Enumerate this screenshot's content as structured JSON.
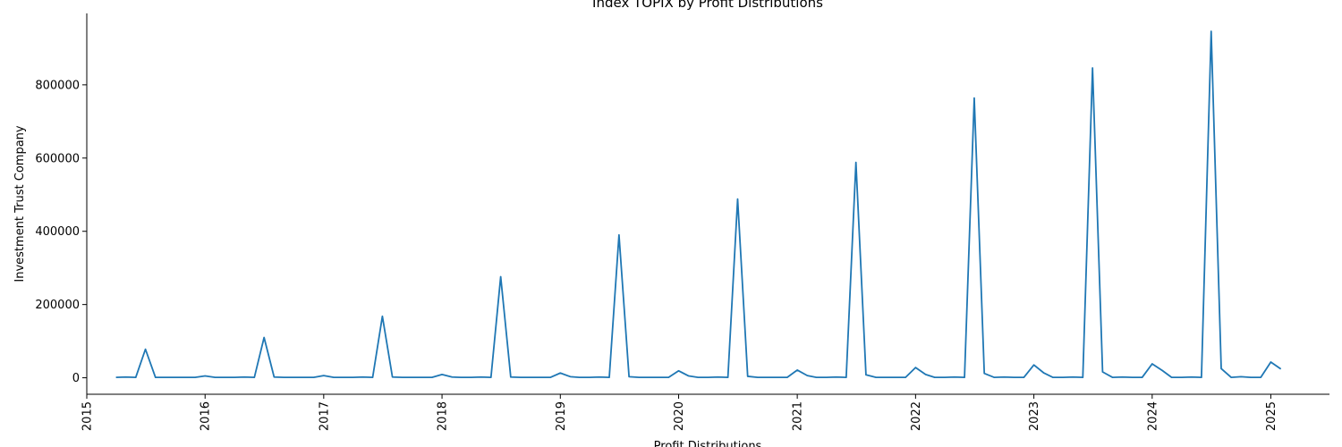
{
  "chart_data": {
    "type": "line",
    "title": "Index TOPIX by Profit Distributions",
    "xlabel": "Profit Distributions",
    "ylabel": "Investment Trust Company",
    "xlim": [
      "2015-01-01",
      "2025-07-01"
    ],
    "ylim": [
      -45000,
      995000
    ],
    "x_ticks": [
      "2015",
      "2016",
      "2017",
      "2018",
      "2019",
      "2020",
      "2021",
      "2022",
      "2023",
      "2024",
      "2025"
    ],
    "y_ticks": [
      0,
      200000,
      400000,
      600000,
      800000
    ],
    "y_tick_labels": [
      "0",
      "200000",
      "400000",
      "600000",
      "800000"
    ],
    "grid": false,
    "series": [
      {
        "color": "#1f77b4",
        "points": [
          [
            "2015-04-01",
            1000
          ],
          [
            "2015-05-01",
            2000
          ],
          [
            "2015-06-01",
            1000
          ],
          [
            "2015-07-01",
            78000
          ],
          [
            "2015-08-01",
            1000
          ],
          [
            "2015-09-01",
            1000
          ],
          [
            "2015-10-01",
            1000
          ],
          [
            "2015-11-01",
            1000
          ],
          [
            "2015-12-01",
            1000
          ],
          [
            "2016-01-01",
            5000
          ],
          [
            "2016-02-01",
            1000
          ],
          [
            "2016-03-01",
            1000
          ],
          [
            "2016-04-01",
            1000
          ],
          [
            "2016-05-01",
            2000
          ],
          [
            "2016-06-01",
            1000
          ],
          [
            "2016-07-01",
            110000
          ],
          [
            "2016-08-01",
            2000
          ],
          [
            "2016-09-01",
            1000
          ],
          [
            "2016-10-01",
            1000
          ],
          [
            "2016-11-01",
            1000
          ],
          [
            "2016-12-01",
            1000
          ],
          [
            "2017-01-01",
            6000
          ],
          [
            "2017-02-01",
            1000
          ],
          [
            "2017-03-01",
            1000
          ],
          [
            "2017-04-01",
            1000
          ],
          [
            "2017-05-01",
            2000
          ],
          [
            "2017-06-01",
            1000
          ],
          [
            "2017-07-01",
            168000
          ],
          [
            "2017-08-01",
            2000
          ],
          [
            "2017-09-01",
            1000
          ],
          [
            "2017-10-01",
            1000
          ],
          [
            "2017-11-01",
            1000
          ],
          [
            "2017-12-01",
            1000
          ],
          [
            "2018-01-01",
            9000
          ],
          [
            "2018-02-01",
            2000
          ],
          [
            "2018-03-01",
            1000
          ],
          [
            "2018-04-01",
            1000
          ],
          [
            "2018-05-01",
            2000
          ],
          [
            "2018-06-01",
            1000
          ],
          [
            "2018-07-01",
            276000
          ],
          [
            "2018-08-01",
            2000
          ],
          [
            "2018-09-01",
            1000
          ],
          [
            "2018-10-01",
            1000
          ],
          [
            "2018-11-01",
            1000
          ],
          [
            "2018-12-01",
            1000
          ],
          [
            "2019-01-01",
            13000
          ],
          [
            "2019-02-01",
            3000
          ],
          [
            "2019-03-01",
            1000
          ],
          [
            "2019-04-01",
            1000
          ],
          [
            "2019-05-01",
            2000
          ],
          [
            "2019-06-01",
            1000
          ],
          [
            "2019-07-01",
            390000
          ],
          [
            "2019-08-01",
            3000
          ],
          [
            "2019-09-01",
            1000
          ],
          [
            "2019-10-01",
            1000
          ],
          [
            "2019-11-01",
            1000
          ],
          [
            "2019-12-01",
            1000
          ],
          [
            "2020-01-01",
            19000
          ],
          [
            "2020-02-01",
            5000
          ],
          [
            "2020-03-01",
            1000
          ],
          [
            "2020-04-01",
            1000
          ],
          [
            "2020-05-01",
            2000
          ],
          [
            "2020-06-01",
            1000
          ],
          [
            "2020-07-01",
            488000
          ],
          [
            "2020-08-01",
            4000
          ],
          [
            "2020-09-01",
            1000
          ],
          [
            "2020-10-01",
            1000
          ],
          [
            "2020-11-01",
            1000
          ],
          [
            "2020-12-01",
            1000
          ],
          [
            "2021-01-01",
            21000
          ],
          [
            "2021-02-01",
            6000
          ],
          [
            "2021-03-01",
            1000
          ],
          [
            "2021-04-01",
            1000
          ],
          [
            "2021-05-01",
            2000
          ],
          [
            "2021-06-01",
            1000
          ],
          [
            "2021-07-01",
            588000
          ],
          [
            "2021-08-01",
            8000
          ],
          [
            "2021-09-01",
            1000
          ],
          [
            "2021-10-01",
            1000
          ],
          [
            "2021-11-01",
            1000
          ],
          [
            "2021-12-01",
            1000
          ],
          [
            "2022-01-01",
            28000
          ],
          [
            "2022-02-01",
            9000
          ],
          [
            "2022-03-01",
            1000
          ],
          [
            "2022-04-01",
            1000
          ],
          [
            "2022-05-01",
            2000
          ],
          [
            "2022-06-01",
            1000
          ],
          [
            "2022-07-01",
            764000
          ],
          [
            "2022-08-01",
            12000
          ],
          [
            "2022-09-01",
            1000
          ],
          [
            "2022-10-01",
            2000
          ],
          [
            "2022-11-01",
            1000
          ],
          [
            "2022-12-01",
            1000
          ],
          [
            "2023-01-01",
            35000
          ],
          [
            "2023-02-01",
            13000
          ],
          [
            "2023-03-01",
            1000
          ],
          [
            "2023-04-01",
            1000
          ],
          [
            "2023-05-01",
            2000
          ],
          [
            "2023-06-01",
            1000
          ],
          [
            "2023-07-01",
            846000
          ],
          [
            "2023-08-01",
            16000
          ],
          [
            "2023-09-01",
            1000
          ],
          [
            "2023-10-01",
            2000
          ],
          [
            "2023-11-01",
            1000
          ],
          [
            "2023-12-01",
            1000
          ],
          [
            "2024-01-01",
            38000
          ],
          [
            "2024-02-01",
            20000
          ],
          [
            "2024-03-01",
            1000
          ],
          [
            "2024-04-01",
            1000
          ],
          [
            "2024-05-01",
            2000
          ],
          [
            "2024-06-01",
            1000
          ],
          [
            "2024-07-01",
            946000
          ],
          [
            "2024-08-01",
            25000
          ],
          [
            "2024-09-01",
            1000
          ],
          [
            "2024-10-01",
            3000
          ],
          [
            "2024-11-01",
            1000
          ],
          [
            "2024-12-01",
            1000
          ],
          [
            "2025-01-01",
            43000
          ],
          [
            "2025-02-01",
            24000
          ]
        ]
      }
    ]
  }
}
